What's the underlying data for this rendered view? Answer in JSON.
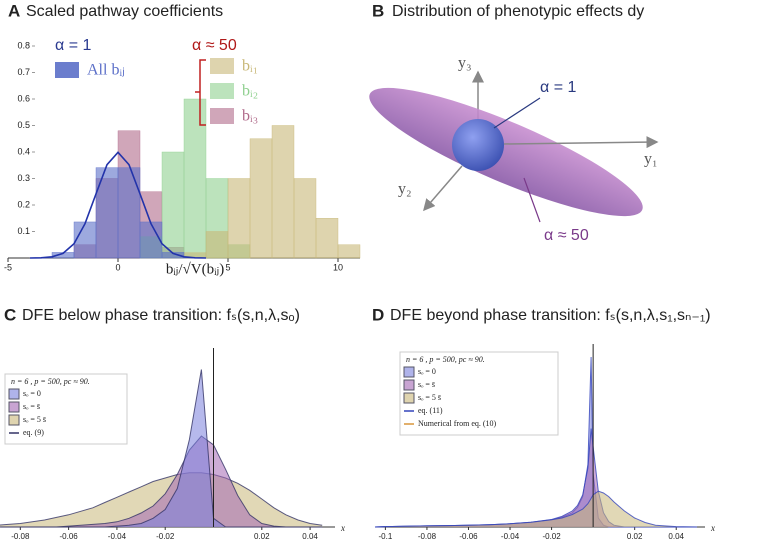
{
  "chart_data": [
    {
      "type": "histogram",
      "panel": "A",
      "title": "Scaled pathway coefficients",
      "x_label": "bᵢⱼ/√V(bᵢⱼ)",
      "annotations": [
        "α = 1",
        "α ≈ 50"
      ],
      "bins": [
        -5,
        -4,
        -3,
        -2,
        -1,
        0,
        1,
        2,
        3,
        4,
        5,
        6,
        7,
        8,
        9,
        10,
        11
      ],
      "series": [
        {
          "name": "All bᵢⱼ",
          "color": "#5b6fc8",
          "values": [
            0,
            0.001,
            0.021,
            0.136,
            0.341,
            0.341,
            0.136,
            0.021,
            0.001,
            0,
            0,
            0,
            0,
            0,
            0,
            0
          ]
        },
        {
          "name": "bᵢ₁",
          "color": "#c8b878",
          "values": [
            0,
            0,
            0,
            0,
            0,
            0,
            0,
            0,
            0.02,
            0.1,
            0.3,
            0.45,
            0.5,
            0.3,
            0.15,
            0.05
          ]
        },
        {
          "name": "bᵢ₂",
          "color": "#8fd08f",
          "values": [
            0,
            0,
            0,
            0,
            0,
            0,
            0.08,
            0.4,
            0.6,
            0.3,
            0.05,
            0,
            0,
            0,
            0,
            0
          ]
        },
        {
          "name": "bᵢ₃",
          "color": "#b06a8a",
          "values": [
            0,
            0,
            0,
            0.05,
            0.3,
            0.48,
            0.25,
            0.04,
            0,
            0,
            0,
            0,
            0,
            0,
            0,
            0
          ]
        }
      ],
      "curve": {
        "color": "#2233aa",
        "x": [
          -4,
          -3.5,
          -3,
          -2.5,
          -2,
          -1.5,
          -1,
          -0.5,
          0,
          0.5,
          1,
          1.5,
          2,
          2.5,
          3,
          3.5,
          4
        ],
        "values": [
          0.0001,
          0.0009,
          0.0044,
          0.0175,
          0.054,
          0.1295,
          0.242,
          0.3521,
          0.3989,
          0.3521,
          0.242,
          0.1295,
          0.054,
          0.0175,
          0.0044,
          0.0009,
          0.0001
        ]
      },
      "xlim": [
        -5,
        11
      ],
      "xticks": [
        -5,
        0,
        5,
        10
      ],
      "ylim": [
        0,
        0.8
      ],
      "yticks": [
        0.1,
        0.2,
        0.3,
        0.4,
        0.5,
        0.6,
        0.7,
        0.8
      ]
    },
    {
      "type": "area",
      "panel": "C",
      "title": "DFE below phase transition: fₛ(s,n,λ,sₒ)",
      "x_label": "x",
      "legend_title": "n = 6 , p = 500, pc ≈ 90.",
      "x": [
        -0.09,
        -0.085,
        -0.08,
        -0.075,
        -0.07,
        -0.065,
        -0.06,
        -0.055,
        -0.05,
        -0.045,
        -0.04,
        -0.035,
        -0.03,
        -0.025,
        -0.02,
        -0.015,
        -0.01,
        -0.005,
        0,
        0.005,
        0.01,
        0.015,
        0.02,
        0.025,
        0.03,
        0.035,
        0.04,
        0.045
      ],
      "series": [
        {
          "name": "sₒ = 5 s̄",
          "color": "#c9b87a",
          "values": [
            0.01,
            0.015,
            0.02,
            0.03,
            0.04,
            0.055,
            0.07,
            0.09,
            0.11,
            0.14,
            0.17,
            0.2,
            0.23,
            0.26,
            0.28,
            0.3,
            0.31,
            0.31,
            0.3,
            0.28,
            0.25,
            0.21,
            0.16,
            0.11,
            0.07,
            0.04,
            0.02,
            0.01
          ]
        },
        {
          "name": "sₒ = s̄",
          "color": "#a468b4",
          "values": [
            0,
            0,
            0,
            0,
            0,
            0,
            0.005,
            0.01,
            0.015,
            0.02,
            0.03,
            0.05,
            0.08,
            0.12,
            0.19,
            0.3,
            0.44,
            0.52,
            0.47,
            0.33,
            0.18,
            0.07,
            0.02,
            0.005,
            0,
            0,
            0,
            0
          ]
        },
        {
          "name": "sₒ = 0",
          "color": "#7a80dc",
          "values": [
            0,
            0,
            0,
            0,
            0,
            0,
            0,
            0,
            0,
            0,
            0.005,
            0.01,
            0.02,
            0.05,
            0.1,
            0.22,
            0.5,
            0.9,
            0.05,
            0,
            0,
            0,
            0,
            0,
            0,
            0,
            0,
            0
          ]
        }
      ],
      "lines": [
        {
          "name": "eq. (9)",
          "color": "#333366"
        }
      ],
      "xlim": [
        -0.088,
        0.047
      ],
      "xticks": [
        -0.08,
        -0.06,
        -0.04,
        -0.02,
        0.02,
        0.04
      ],
      "ylim": [
        0,
        1
      ]
    },
    {
      "type": "area",
      "panel": "D",
      "title": "DFE beyond phase transition: fₛ(s,n,λ,s₁,sₙ₋₁)",
      "x_label": "x",
      "legend_title": "n = 6 , p = 500, pc ≈ 90.",
      "x": [
        -0.105,
        -0.1,
        -0.09,
        -0.08,
        -0.07,
        -0.06,
        -0.05,
        -0.04,
        -0.03,
        -0.02,
        -0.015,
        -0.01,
        -0.0075,
        -0.005,
        -0.0025,
        -0.001,
        0,
        0.0025,
        0.005,
        0.0075,
        0.01,
        0.015,
        0.02,
        0.025,
        0.03,
        0.04,
        0.05
      ],
      "series": [
        {
          "name": "sₒ = 0",
          "color": "#7a80dc",
          "values": [
            0,
            0.002,
            0.004,
            0.006,
            0.008,
            0.01,
            0.013,
            0.018,
            0.025,
            0.04,
            0.055,
            0.08,
            0.11,
            0.17,
            0.35,
            0.95,
            0.3,
            0.05,
            0.01,
            0,
            0,
            0,
            0,
            0,
            0,
            0,
            0
          ]
        },
        {
          "name": "sₒ = s̄",
          "color": "#a468b4",
          "values": [
            0,
            0.002,
            0.004,
            0.006,
            0.008,
            0.01,
            0.013,
            0.018,
            0.026,
            0.042,
            0.06,
            0.09,
            0.12,
            0.18,
            0.33,
            0.55,
            0.45,
            0.2,
            0.08,
            0.03,
            0.01,
            0,
            0,
            0,
            0,
            0,
            0
          ]
        },
        {
          "name": "sₒ = 5 s̄",
          "color": "#c9b87a",
          "values": [
            0,
            0.002,
            0.004,
            0.006,
            0.008,
            0.01,
            0.013,
            0.018,
            0.026,
            0.04,
            0.05,
            0.07,
            0.085,
            0.1,
            0.13,
            0.16,
            0.18,
            0.2,
            0.19,
            0.17,
            0.14,
            0.09,
            0.05,
            0.025,
            0.01,
            0.002,
            0
          ]
        }
      ],
      "lines": [
        {
          "name": "eq. (11)",
          "color": "#3344bb"
        },
        {
          "name": "Numerical from eq. (10)",
          "color": "#d9963a"
        }
      ],
      "xlim": [
        -0.105,
        0.05
      ],
      "xticks": [
        -0.1,
        -0.08,
        -0.06,
        -0.04,
        -0.02,
        0.02,
        0.04
      ],
      "ylim": [
        0,
        1
      ]
    }
  ],
  "diagram": {
    "panel": "B",
    "title": "Distribution of phenotypic effects dy",
    "axes": [
      "y₁",
      "y₂",
      "y₃"
    ],
    "labels": [
      "α = 1",
      "α ≈ 50"
    ]
  }
}
